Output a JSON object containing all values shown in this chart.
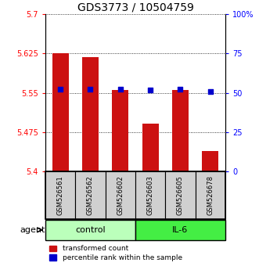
{
  "title": "GDS3773 / 10504759",
  "samples": [
    "GSM526561",
    "GSM526562",
    "GSM526602",
    "GSM526603",
    "GSM526605",
    "GSM526678"
  ],
  "bar_values": [
    5.625,
    5.618,
    5.555,
    5.492,
    5.555,
    5.44
  ],
  "bar_bottom": 5.4,
  "percentile_values": [
    5.557,
    5.557,
    5.557,
    5.555,
    5.557,
    5.553
  ],
  "ylim": [
    5.4,
    5.7
  ],
  "yticks": [
    5.4,
    5.475,
    5.55,
    5.625,
    5.7
  ],
  "ytick_labels": [
    "5.4",
    "5.475",
    "5.55",
    "5.625",
    "5.7"
  ],
  "right_yticks": [
    0,
    25,
    50,
    75,
    100
  ],
  "right_ytick_labels": [
    "0",
    "25",
    "50",
    "75",
    "100%"
  ],
  "bar_color": "#cc1111",
  "dot_color": "#0000cc",
  "control_samples": [
    0,
    1,
    2
  ],
  "il6_samples": [
    3,
    4,
    5
  ],
  "control_label": "control",
  "il6_label": "IL-6",
  "agent_label": "agent",
  "control_color": "#bbffbb",
  "il6_color": "#44ee44",
  "legend_red_label": "transformed count",
  "legend_blue_label": "percentile rank within the sample",
  "bar_width": 0.55,
  "title_fontsize": 10,
  "tick_fontsize": 7,
  "sample_fontsize": 6,
  "legend_fontsize": 6.5,
  "agent_fontsize": 8
}
